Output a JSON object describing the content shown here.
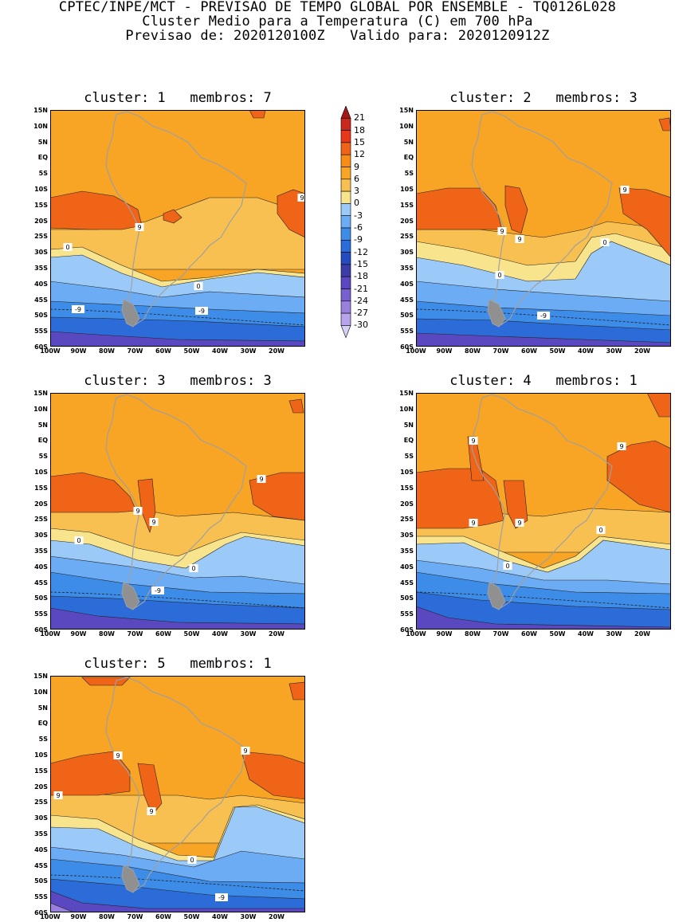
{
  "header": {
    "line1": "CPTEC/INPE/MCT - PREVISAO DE TEMPO GLOBAL POR ENSEMBLE - TQ0126L028",
    "line2": "Cluster Medio para a Temperatura (C) em 700 hPa",
    "line3": "Previsao de: 2020120100Z   Valido para: 2020120912Z"
  },
  "panels": [
    {
      "title": "cluster: 1   membros: 7"
    },
    {
      "title": "cluster: 2   membros: 3"
    },
    {
      "title": "cluster: 3   membros: 3"
    },
    {
      "title": "cluster: 4   membros: 1"
    },
    {
      "title": "cluster: 5   membros: 1"
    }
  ],
  "lat_labels": [
    "15N",
    "10N",
    "5N",
    "EQ",
    "5S",
    "10S",
    "15S",
    "20S",
    "25S",
    "30S",
    "35S",
    "40S",
    "45S",
    "50S",
    "55S",
    "60S"
  ],
  "lon_labels": [
    "100W",
    "90W",
    "80W",
    "70W",
    "60W",
    "50W",
    "40W",
    "30W",
    "20W"
  ],
  "colorbar": {
    "labels": [
      "21",
      "18",
      "15",
      "12",
      "9",
      "6",
      "3",
      "0",
      "-3",
      "-6",
      "-9",
      "-12",
      "-15",
      "-18",
      "-21",
      "-24",
      "-27",
      "-30"
    ],
    "colors": [
      "#a01818",
      "#c8281e",
      "#e8381c",
      "#f06418",
      "#f88c14",
      "#f8a424",
      "#f8c050",
      "#f8e48c",
      "#9ccaf8",
      "#6cacf4",
      "#3c8ce8",
      "#2c6cd8",
      "#244cc0",
      "#3c3ca8",
      "#5a48c0",
      "#7860d0",
      "#9880dc",
      "#b8a4ec",
      "#d8d0f4"
    ]
  },
  "contour_labels": {
    "p1": [
      "9",
      "9",
      "0",
      "0",
      "-9",
      "-9"
    ],
    "p2": [
      "9",
      "9",
      "9",
      "0",
      "0",
      "-9"
    ],
    "p3": [
      "9",
      "9",
      "9",
      "0",
      "0",
      "-9"
    ],
    "p4": [
      "9",
      "9",
      "9",
      "9",
      "0",
      "0",
      "-9"
    ],
    "p5": [
      "9",
      "9",
      "9",
      "9",
      "0",
      "-9"
    ]
  },
  "colors": {
    "orange": "#f8a424",
    "dark_orange": "#f06418",
    "light_orange": "#f8c050",
    "yellow": "#f8e48c",
    "light_blue": "#9ccaf8",
    "mid_blue": "#6cacf4",
    "blue": "#3c8ce8",
    "dark_blue": "#2c6cd8",
    "indigo": "#5a48c0",
    "violet": "#9880dc",
    "coast": "#a0a0a0"
  }
}
